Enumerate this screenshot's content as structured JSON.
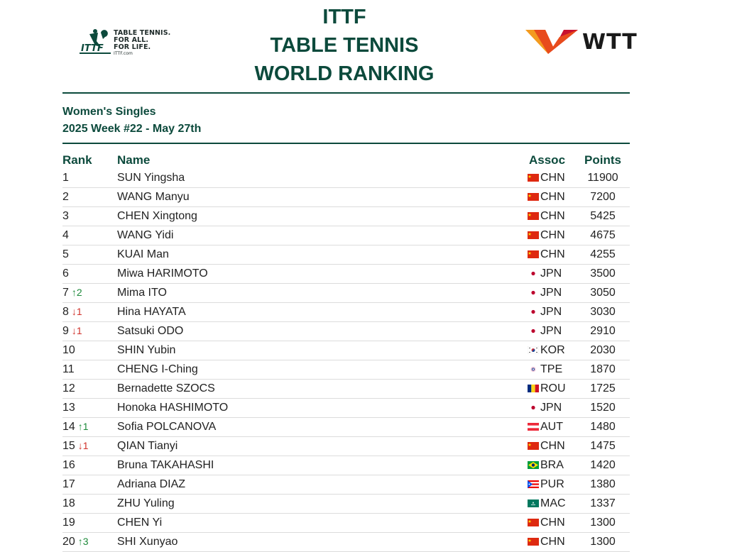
{
  "header": {
    "title_lines": [
      "ITTF",
      "TABLE TENNIS",
      "WORLD RANKING"
    ],
    "ittf_logo": {
      "tagline": [
        "TABLE TENNIS.",
        "FOR ALL.",
        "FOR LIFE."
      ],
      "site": "ITTF.com",
      "icon": "ittf-logo-icon",
      "color": "#0c4a3c"
    },
    "wtt_logo": {
      "text": "WTT",
      "icon": "wtt-logo-icon",
      "colors": [
        "#e84b1c",
        "#c8102e",
        "#f39a1e"
      ]
    }
  },
  "subtitle": {
    "category": "Women's Singles",
    "week": "2025 Week #22 - May 27th"
  },
  "table": {
    "headers": {
      "rank": "Rank",
      "name": "Name",
      "assoc": "Assoc",
      "points": "Points"
    },
    "rows": [
      {
        "rank": "1",
        "change": "",
        "dir": "",
        "name": "SUN Yingsha",
        "assoc": "CHN",
        "flag": "chn",
        "points": "11900"
      },
      {
        "rank": "2",
        "change": "",
        "dir": "",
        "name": "WANG Manyu",
        "assoc": "CHN",
        "flag": "chn",
        "points": "7200"
      },
      {
        "rank": "3",
        "change": "",
        "dir": "",
        "name": "CHEN Xingtong",
        "assoc": "CHN",
        "flag": "chn",
        "points": "5425"
      },
      {
        "rank": "4",
        "change": "",
        "dir": "",
        "name": "WANG Yidi",
        "assoc": "CHN",
        "flag": "chn",
        "points": "4675"
      },
      {
        "rank": "5",
        "change": "",
        "dir": "",
        "name": "KUAI Man",
        "assoc": "CHN",
        "flag": "chn",
        "points": "4255"
      },
      {
        "rank": "6",
        "change": "",
        "dir": "",
        "name": "Miwa HARIMOTO",
        "assoc": "JPN",
        "flag": "jpn",
        "points": "3500"
      },
      {
        "rank": "7",
        "change": "↑2",
        "dir": "up",
        "name": "Mima ITO",
        "assoc": "JPN",
        "flag": "jpn",
        "points": "3050"
      },
      {
        "rank": "8",
        "change": "↓1",
        "dir": "down",
        "name": "Hina HAYATA",
        "assoc": "JPN",
        "flag": "jpn",
        "points": "3030"
      },
      {
        "rank": "9",
        "change": "↓1",
        "dir": "down",
        "name": "Satsuki ODO",
        "assoc": "JPN",
        "flag": "jpn",
        "points": "2910"
      },
      {
        "rank": "10",
        "change": "",
        "dir": "",
        "name": "SHIN Yubin",
        "assoc": "KOR",
        "flag": "kor",
        "points": "2030"
      },
      {
        "rank": "11",
        "change": "",
        "dir": "",
        "name": "CHENG I-Ching",
        "assoc": "TPE",
        "flag": "tpe",
        "points": "1870"
      },
      {
        "rank": "12",
        "change": "",
        "dir": "",
        "name": "Bernadette SZOCS",
        "assoc": "ROU",
        "flag": "rou",
        "points": "1725"
      },
      {
        "rank": "13",
        "change": "",
        "dir": "",
        "name": "Honoka HASHIMOTO",
        "assoc": "JPN",
        "flag": "jpn",
        "points": "1520"
      },
      {
        "rank": "14",
        "change": "↑1",
        "dir": "up",
        "name": "Sofia POLCANOVA",
        "assoc": "AUT",
        "flag": "aut",
        "points": "1480"
      },
      {
        "rank": "15",
        "change": "↓1",
        "dir": "down",
        "name": "QIAN Tianyi",
        "assoc": "CHN",
        "flag": "chn",
        "points": "1475"
      },
      {
        "rank": "16",
        "change": "",
        "dir": "",
        "name": "Bruna TAKAHASHI",
        "assoc": "BRA",
        "flag": "bra",
        "points": "1420"
      },
      {
        "rank": "17",
        "change": "",
        "dir": "",
        "name": "Adriana DIAZ",
        "assoc": "PUR",
        "flag": "pur",
        "points": "1380"
      },
      {
        "rank": "18",
        "change": "",
        "dir": "",
        "name": "ZHU Yuling",
        "assoc": "MAC",
        "flag": "mac",
        "points": "1337"
      },
      {
        "rank": "19",
        "change": "",
        "dir": "",
        "name": "CHEN Yi",
        "assoc": "CHN",
        "flag": "chn",
        "points": "1300"
      },
      {
        "rank": "20",
        "change": "↑3",
        "dir": "up",
        "name": "SHI Xunyao",
        "assoc": "CHN",
        "flag": "chn",
        "points": "1300"
      }
    ]
  },
  "colors": {
    "brand_green": "#0c4a3c",
    "up": "#1d8a3a",
    "down": "#d0322b",
    "row_divider": "#dcdcdc"
  }
}
